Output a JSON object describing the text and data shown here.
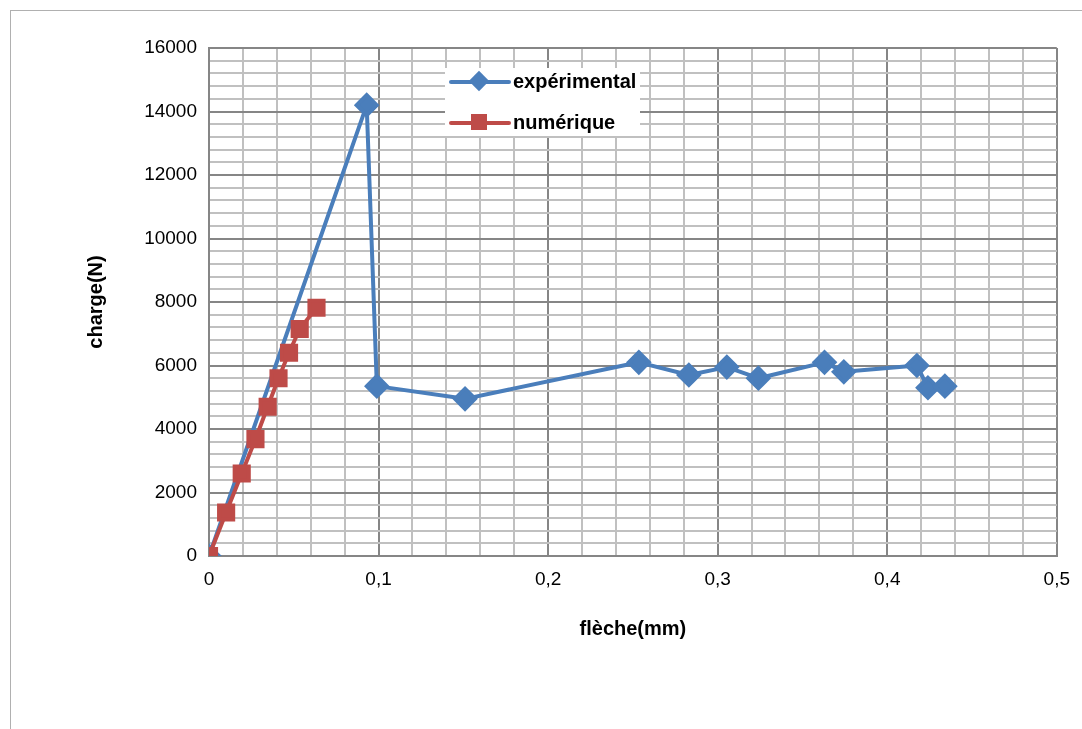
{
  "chart_data": {
    "type": "line",
    "xlabel": "flèche(mm)",
    "ylabel": "charge(N)",
    "series": [
      {
        "name": "expérimental",
        "color": "#4a7ebb",
        "marker": "diamond",
        "x": [
          0,
          0.093,
          0.099,
          0.151,
          0.2535,
          0.283,
          0.3054,
          0.324,
          0.363,
          0.3744,
          0.4175,
          0.424,
          0.434
        ],
        "values": [
          0,
          14200,
          5350,
          4950,
          6100,
          5700,
          5950,
          5600,
          6100,
          5800,
          6000,
          5300,
          5350
        ]
      },
      {
        "name": "numérique",
        "color": "#be4b48",
        "marker": "square",
        "x": [
          0,
          0.0101,
          0.0193,
          0.0274,
          0.0346,
          0.041,
          0.0472,
          0.0535,
          0.0634
        ],
        "values": [
          0,
          1370,
          2600,
          3680,
          4700,
          5600,
          6400,
          7150,
          7820
        ]
      }
    ],
    "xlim": [
      0,
      0.5
    ],
    "xticks": [
      {
        "value": 0,
        "label": "0"
      },
      {
        "value": 0.02,
        "label": null
      },
      {
        "value": 0.04,
        "label": null
      },
      {
        "value": 0.06,
        "label": null
      },
      {
        "value": 0.08,
        "label": null
      },
      {
        "value": 0.1,
        "label": "0,1"
      },
      {
        "value": 0.12,
        "label": null
      },
      {
        "value": 0.14,
        "label": null
      },
      {
        "value": 0.16,
        "label": null
      },
      {
        "value": 0.18,
        "label": null
      },
      {
        "value": 0.2,
        "label": "0,2"
      },
      {
        "value": 0.22,
        "label": null
      },
      {
        "value": 0.24,
        "label": null
      },
      {
        "value": 0.26,
        "label": null
      },
      {
        "value": 0.28,
        "label": null
      },
      {
        "value": 0.3,
        "label": "0,3"
      },
      {
        "value": 0.32,
        "label": null
      },
      {
        "value": 0.34,
        "label": null
      },
      {
        "value": 0.36,
        "label": null
      },
      {
        "value": 0.38,
        "label": null
      },
      {
        "value": 0.4,
        "label": "0,4"
      },
      {
        "value": 0.42,
        "label": null
      },
      {
        "value": 0.44,
        "label": null
      },
      {
        "value": 0.46,
        "label": null
      },
      {
        "value": 0.48,
        "label": null
      },
      {
        "value": 0.5,
        "label": "0,5"
      }
    ],
    "ylim": [
      0,
      16000
    ],
    "yticks": [
      0,
      {
        "value": 400,
        "label": null
      },
      {
        "value": 800,
        "label": null
      },
      {
        "value": 1200,
        "label": null
      },
      {
        "value": 1600,
        "label": null
      },
      2000,
      {
        "value": 2400,
        "label": null
      },
      {
        "value": 2800,
        "label": null
      },
      {
        "value": 3200,
        "label": null
      },
      {
        "value": 3600,
        "label": null
      },
      4000,
      {
        "value": 4400,
        "label": null
      },
      {
        "value": 4800,
        "label": null
      },
      {
        "value": 5200,
        "label": null
      },
      {
        "value": 5600,
        "label": null
      },
      6000,
      {
        "value": 6400,
        "label": null
      },
      {
        "value": 6800,
        "label": null
      },
      {
        "value": 7200,
        "label": null
      },
      {
        "value": 7600,
        "label": null
      },
      8000,
      {
        "value": 8400,
        "label": null
      },
      {
        "value": 8800,
        "label": null
      },
      {
        "value": 9200,
        "label": null
      },
      {
        "value": 9600,
        "label": null
      },
      10000,
      {
        "value": 10400,
        "label": null
      },
      {
        "value": 10800,
        "label": null
      },
      {
        "value": 11200,
        "label": null
      },
      {
        "value": 11600,
        "label": null
      },
      12000,
      {
        "value": 12400,
        "label": null
      },
      {
        "value": 12800,
        "label": null
      },
      {
        "value": 13200,
        "label": null
      },
      {
        "value": 13600,
        "label": null
      },
      14000,
      {
        "value": 14400,
        "label": null
      },
      {
        "value": 14800,
        "label": null
      },
      {
        "value": 15200,
        "label": null
      },
      {
        "value": 15600,
        "label": null
      },
      16000
    ],
    "grid": true,
    "legend": "top",
    "line_style": "solid"
  }
}
